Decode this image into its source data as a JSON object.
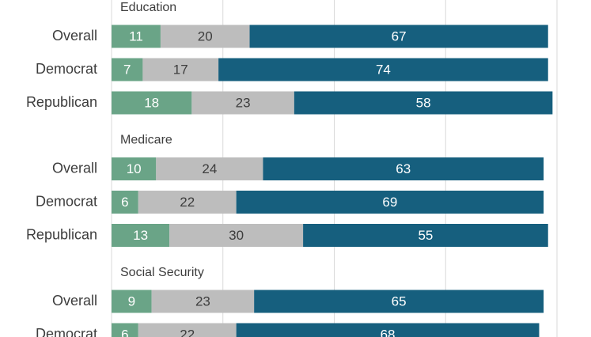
{
  "chart_data": {
    "type": "bar",
    "orientation": "horizontal",
    "stacked": true,
    "xlim": [
      0,
      100
    ],
    "grid": true,
    "segment_colors": [
      "#6aa487",
      "#bdbdbd",
      "#165f7e"
    ],
    "groups": [
      {
        "title": "Education",
        "rows": [
          {
            "label": "Overall",
            "values": [
              11,
              20,
              67
            ]
          },
          {
            "label": "Democrat",
            "values": [
              7,
              17,
              74
            ]
          },
          {
            "label": "Republican",
            "values": [
              18,
              23,
              58
            ]
          }
        ]
      },
      {
        "title": "Medicare",
        "rows": [
          {
            "label": "Overall",
            "values": [
              10,
              24,
              63
            ]
          },
          {
            "label": "Democrat",
            "values": [
              6,
              22,
              69
            ]
          },
          {
            "label": "Republican",
            "values": [
              13,
              30,
              55
            ]
          }
        ]
      },
      {
        "title": "Social Security",
        "rows": [
          {
            "label": "Overall",
            "values": [
              9,
              23,
              65
            ]
          },
          {
            "label": "Democrat",
            "values": [
              6,
              22,
              68
            ]
          }
        ]
      }
    ]
  }
}
